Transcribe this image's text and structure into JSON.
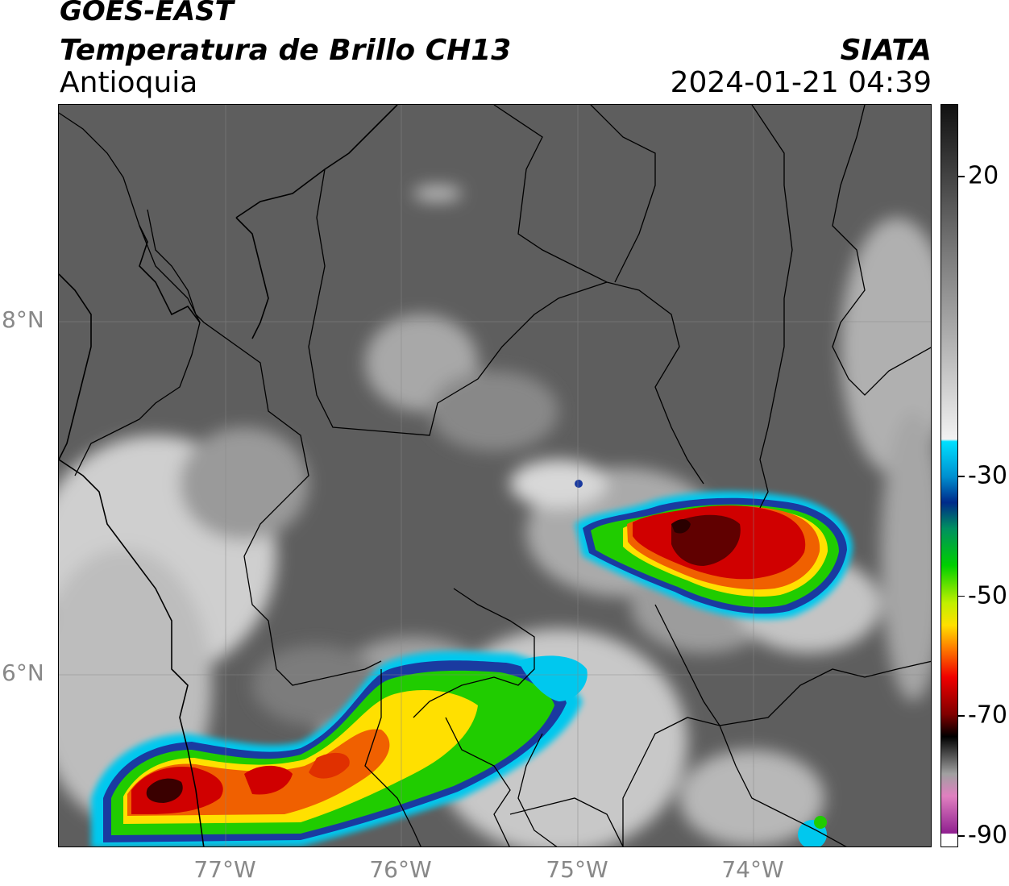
{
  "header": {
    "satellite": "GOES-EAST",
    "product": "Temperatura de Brillo CH13",
    "region": "Antioquia",
    "organization": "SIATA",
    "timestamp": "2024-01-21 04:39"
  },
  "map": {
    "lat_labels": [
      "8°N",
      "6°N"
    ],
    "lon_labels": [
      "77°W",
      "76°W",
      "75°W",
      "74°W"
    ],
    "lat_range": [
      5.1,
      9.3
    ],
    "lon_range": [
      -77.95,
      -72.95
    ],
    "gridlines": true
  },
  "colorbar": {
    "ticks": [
      "20",
      "-30",
      "-50",
      "-70",
      "-90"
    ],
    "tick_values": [
      20,
      -30,
      -50,
      -70,
      -90
    ],
    "range": [
      -92,
      32
    ]
  },
  "colors": {
    "background_gray": "#5a5a5a",
    "cold_red": "#e00000",
    "yellow": "#ffe000",
    "green": "#22cc00",
    "blue": "#003399",
    "cyan": "#00ccee",
    "magenta": "#c040c0"
  }
}
